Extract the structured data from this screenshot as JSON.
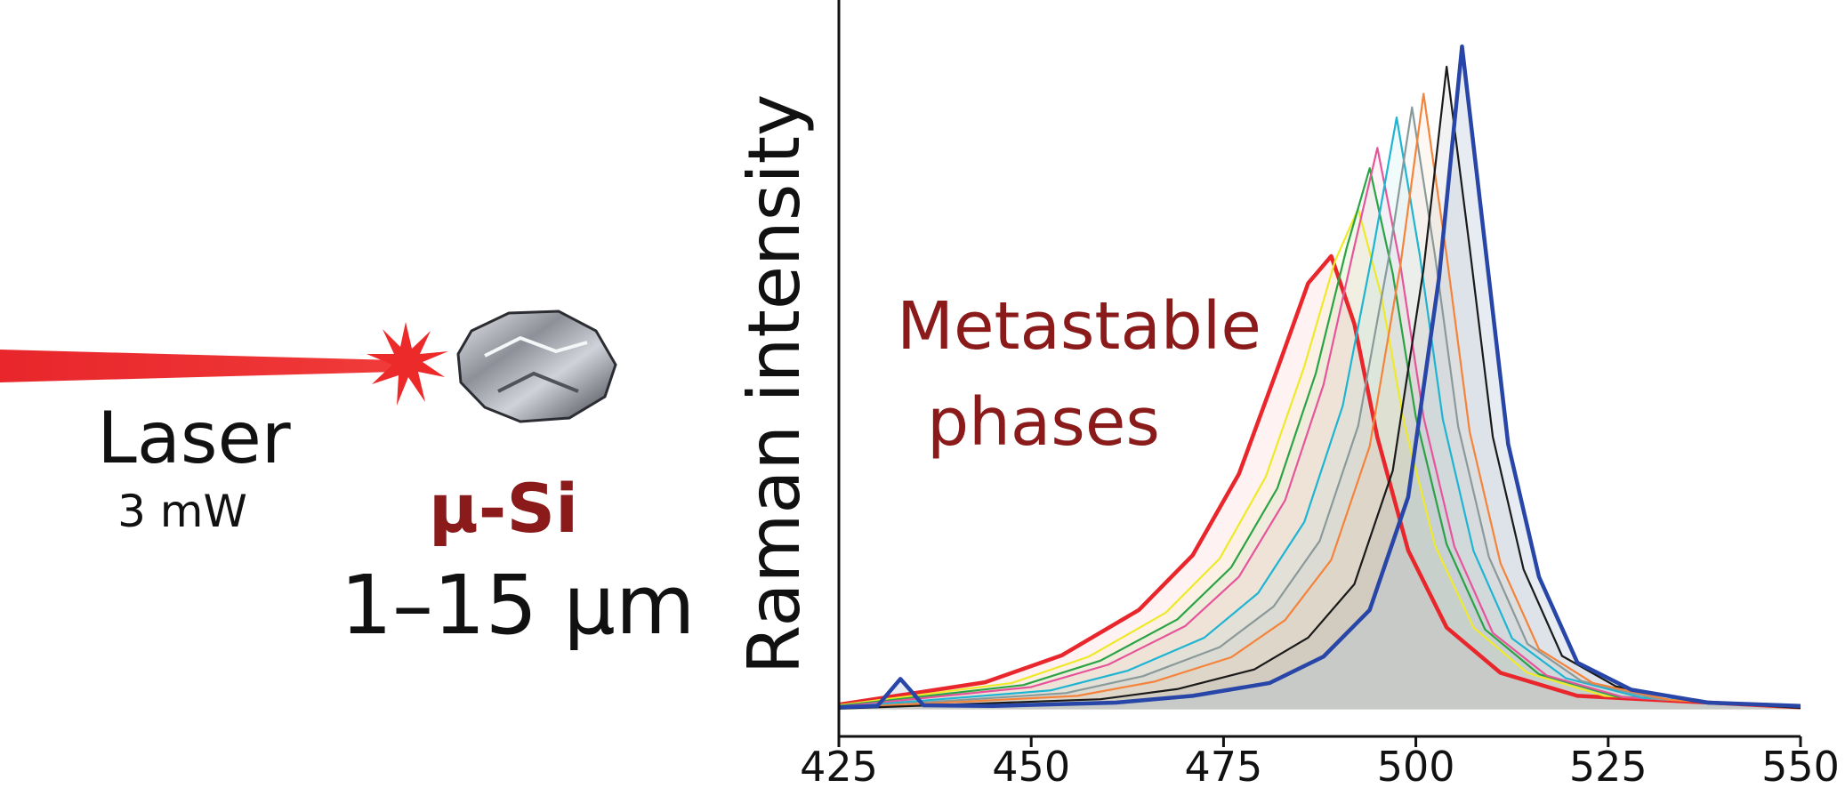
{
  "diagram": {
    "laser": "Laser",
    "power": "3 mW",
    "material": "μ-Si",
    "size": "1–15 μm"
  },
  "chart_data": {
    "type": "line",
    "y_label": "Raman intensity",
    "annotation": [
      "Metastable",
      "phases"
    ],
    "xlim": [
      425,
      550
    ],
    "xticks": [
      425,
      450,
      475,
      500,
      525,
      550
    ],
    "ylim": [
      -4,
      100
    ],
    "fill": true,
    "series": [
      {
        "color": "#e8262b",
        "x": [
          425,
          444,
          454,
          464,
          471,
          477,
          482,
          486,
          489,
          492,
          495,
          499,
          504,
          511,
          521,
          550
        ],
        "values": [
          0.7,
          4.0,
          8.0,
          14.7,
          22.8,
          34.8,
          50.3,
          63.0,
          67,
          57.0,
          40.2,
          23.5,
          12.1,
          5.4,
          2.0,
          0.3
        ]
      },
      {
        "color": "#eeea2a",
        "x": [
          425,
          447.5,
          457.5,
          467.5,
          474.5,
          480.5,
          485.5,
          489.5,
          492.5,
          495.5,
          498.5,
          502.5,
          507.5,
          514.5,
          524.5,
          550
        ],
        "values": [
          0.6,
          3.9,
          7.8,
          14.3,
          22.3,
          34.4,
          50.7,
          66.3,
          74,
          61.2,
          42.2,
          24.2,
          12.1,
          5.4,
          2.0,
          0.3
        ]
      },
      {
        "color": "#2aa345",
        "x": [
          425,
          449,
          459,
          469,
          476,
          482,
          487,
          491,
          494,
          497,
          500,
          504,
          509,
          516,
          526,
          550
        ],
        "values": [
          0.5,
          3.6,
          7.2,
          13.3,
          21.0,
          32.7,
          49.7,
          68.2,
          80,
          64.4,
          43.2,
          24.4,
          11.8,
          5.2,
          1.9,
          0.3
        ]
      },
      {
        "color": "#e6559b",
        "x": [
          425,
          450,
          460,
          470,
          477,
          483,
          488,
          492,
          495,
          498,
          501,
          505,
          510,
          517,
          527,
          550
        ],
        "values": [
          0.4,
          3.3,
          6.6,
          12.3,
          19.6,
          30.9,
          48.0,
          68.4,
          83,
          65.6,
          43.2,
          24.1,
          11.3,
          5.0,
          1.8,
          0.3
        ]
      },
      {
        "color": "#1eb4d2",
        "x": [
          425,
          452.5,
          462.5,
          472.5,
          479.5,
          485.5,
          490.5,
          494.5,
          497.5,
          500.5,
          503.5,
          507.5,
          512.5,
          519.5,
          529.5,
          550
        ],
        "values": [
          0.3,
          2.8,
          5.7,
          10.6,
          17.2,
          27.7,
          44.9,
          68.3,
          87.5,
          67.2,
          42.9,
          23.4,
          10.5,
          4.6,
          1.7,
          0.3
        ]
      },
      {
        "color": "#8a9a9a",
        "x": [
          425,
          454.5,
          464.5,
          474.5,
          481.5,
          487.5,
          492.5,
          496.5,
          499.5,
          502.5,
          505.5,
          509.5,
          514.5,
          521.5,
          531.5,
          550
        ],
        "values": [
          0.2,
          2.4,
          4.9,
          9.2,
          15.2,
          24.9,
          41.9,
          66.9,
          89,
          67.0,
          41.8,
          22.5,
          9.7,
          4.2,
          1.5,
          0.3
        ]
      },
      {
        "color": "#f4843b",
        "x": [
          425,
          456,
          466,
          476,
          483,
          489,
          494,
          498,
          501,
          504,
          507,
          511,
          516,
          523,
          533,
          550
        ],
        "values": [
          0.2,
          2.0,
          4.1,
          7.7,
          13.2,
          22.1,
          38.9,
          65.7,
          91,
          67.1,
          41.0,
          21.6,
          8.9,
          3.9,
          1.4,
          0.2
        ]
      },
      {
        "color": "#1a1a1a",
        "x": [
          425,
          459,
          469,
          479,
          486,
          492,
          497,
          501,
          504,
          507,
          510,
          514,
          519,
          526,
          536,
          550
        ],
        "values": [
          0.1,
          1.5,
          3.0,
          5.9,
          10.6,
          18.5,
          35.3,
          65.1,
          95,
          68.2,
          40.3,
          20.7,
          7.9,
          3.4,
          1.2,
          0.2
        ]
      },
      {
        "color": "#2845a8",
        "x": [
          425,
          430,
          433,
          436,
          445,
          461,
          471,
          481,
          488,
          494,
          499,
          503,
          506,
          509,
          512,
          516,
          521,
          528,
          538,
          550
        ],
        "values": [
          0.3,
          0.5,
          4.5,
          0.6,
          0.5,
          1.0,
          2.0,
          3.9,
          7.8,
          14.7,
          31.4,
          63.7,
          98,
          68.6,
          39.2,
          19.6,
          6.9,
          2.9,
          1.0,
          0.5
        ]
      }
    ]
  }
}
